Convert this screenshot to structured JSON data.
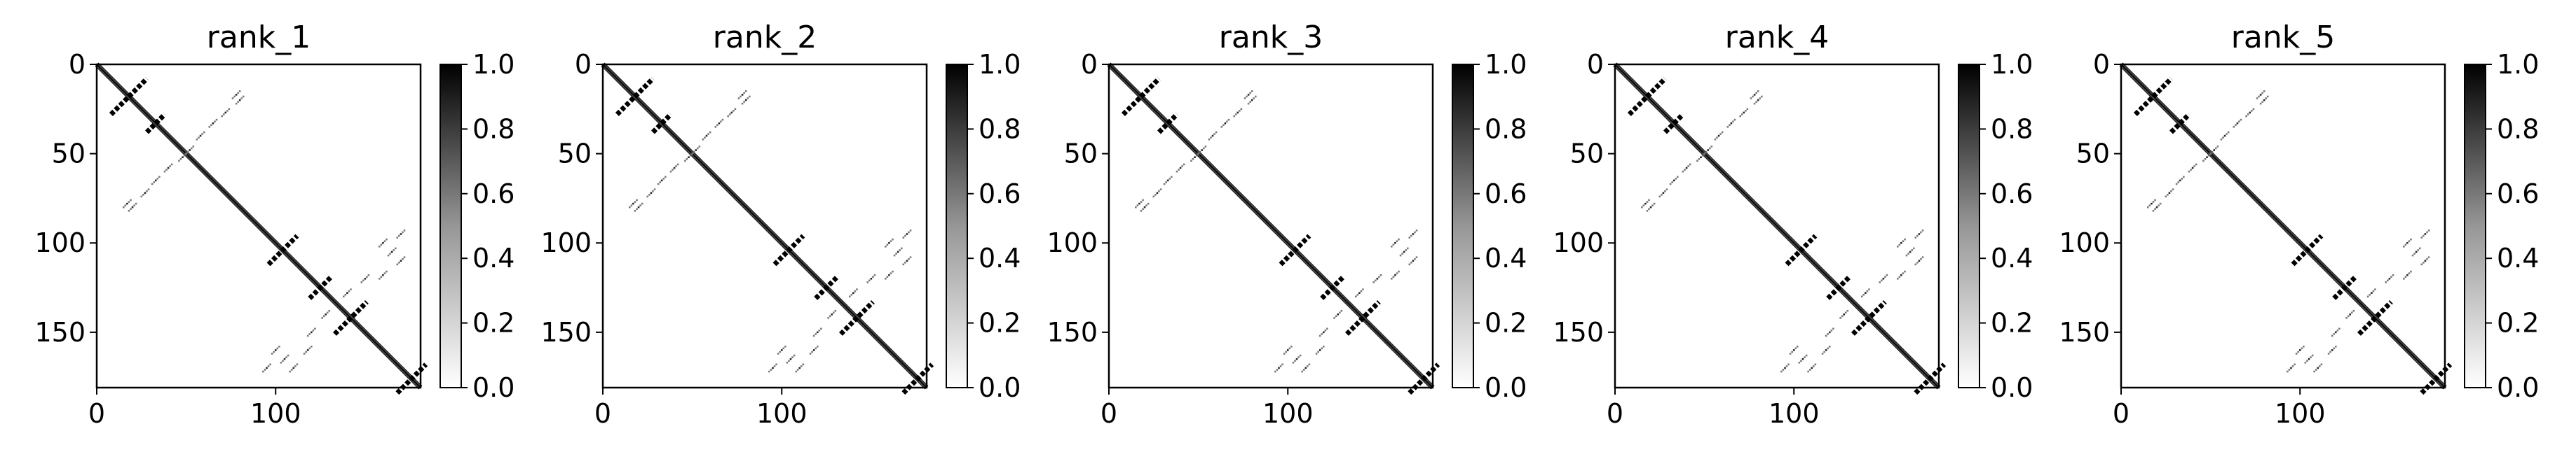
{
  "figure": {
    "panel_count": 5
  },
  "chart_data": [
    {
      "type": "heatmap",
      "title": "rank_1",
      "xlim": [
        0,
        181
      ],
      "ylim": [
        181,
        0
      ],
      "xticks": [
        0,
        100
      ],
      "yticks": [
        0,
        50,
        100,
        150
      ],
      "colorbar": {
        "min": 0.0,
        "max": 1.0,
        "ticks": [
          "0.0",
          "0.2",
          "0.4",
          "0.6",
          "0.8",
          "1.0"
        ],
        "colormap": "Greys"
      },
      "matrix_size": 181,
      "grid": false,
      "structure": {
        "main_diagonal": true,
        "anti_diagonal_blocks": [
          {
            "center": [
              18,
              18
            ],
            "halfwidth": 10
          },
          {
            "center": [
              33,
              33
            ],
            "halfwidth": 5
          },
          {
            "center": [
              104,
              104
            ],
            "halfwidth": 8
          },
          {
            "center": [
              125,
              125
            ],
            "halfwidth": 6
          },
          {
            "center": [
              142,
              142
            ],
            "halfwidth": 9
          },
          {
            "center": [
              176,
              176
            ],
            "halfwidth": 8
          }
        ],
        "off_diagonal_dots": [
          [
            78,
            17
          ],
          [
            80,
            20
          ],
          [
            72,
            27
          ],
          [
            65,
            33
          ],
          [
            58,
            40
          ],
          [
            52,
            48
          ],
          [
            17,
            78
          ],
          [
            20,
            80
          ],
          [
            27,
            72
          ],
          [
            33,
            65
          ],
          [
            40,
            58
          ],
          [
            48,
            52
          ],
          [
            160,
            100
          ],
          [
            165,
            105
          ],
          [
            170,
            110
          ],
          [
            150,
            120
          ],
          [
            140,
            128
          ],
          [
            100,
            160
          ],
          [
            105,
            165
          ],
          [
            110,
            170
          ],
          [
            120,
            150
          ],
          [
            128,
            140
          ],
          [
            170,
            95
          ],
          [
            95,
            170
          ],
          [
            118,
            160
          ],
          [
            160,
            118
          ]
        ]
      }
    },
    {
      "type": "heatmap",
      "title": "rank_2",
      "xlim": [
        0,
        181
      ],
      "ylim": [
        181,
        0
      ],
      "xticks": [
        0,
        100
      ],
      "yticks": [
        0,
        50,
        100,
        150
      ],
      "colorbar": {
        "min": 0.0,
        "max": 1.0,
        "ticks": [
          "0.0",
          "0.2",
          "0.4",
          "0.6",
          "0.8",
          "1.0"
        ],
        "colormap": "Greys"
      },
      "matrix_size": 181,
      "grid": false,
      "structure": {
        "main_diagonal": true,
        "anti_diagonal_blocks": [
          {
            "center": [
              18,
              18
            ],
            "halfwidth": 10
          },
          {
            "center": [
              33,
              33
            ],
            "halfwidth": 5
          },
          {
            "center": [
              104,
              104
            ],
            "halfwidth": 8
          },
          {
            "center": [
              125,
              125
            ],
            "halfwidth": 6
          },
          {
            "center": [
              142,
              142
            ],
            "halfwidth": 9
          },
          {
            "center": [
              176,
              176
            ],
            "halfwidth": 8
          }
        ],
        "off_diagonal_dots": [
          [
            78,
            17
          ],
          [
            80,
            20
          ],
          [
            72,
            27
          ],
          [
            65,
            33
          ],
          [
            58,
            40
          ],
          [
            52,
            48
          ],
          [
            17,
            78
          ],
          [
            20,
            80
          ],
          [
            27,
            72
          ],
          [
            33,
            65
          ],
          [
            40,
            58
          ],
          [
            48,
            52
          ],
          [
            160,
            100
          ],
          [
            165,
            105
          ],
          [
            170,
            110
          ],
          [
            150,
            120
          ],
          [
            140,
            128
          ],
          [
            100,
            160
          ],
          [
            105,
            165
          ],
          [
            110,
            170
          ],
          [
            120,
            150
          ],
          [
            128,
            140
          ],
          [
            170,
            95
          ],
          [
            95,
            170
          ],
          [
            118,
            160
          ],
          [
            160,
            118
          ]
        ]
      }
    },
    {
      "type": "heatmap",
      "title": "rank_3",
      "xlim": [
        0,
        181
      ],
      "ylim": [
        181,
        0
      ],
      "xticks": [
        0,
        100
      ],
      "yticks": [
        0,
        50,
        100,
        150
      ],
      "colorbar": {
        "min": 0.0,
        "max": 1.0,
        "ticks": [
          "0.0",
          "0.2",
          "0.4",
          "0.6",
          "0.8",
          "1.0"
        ],
        "colormap": "Greys"
      },
      "matrix_size": 181,
      "grid": false,
      "structure": {
        "main_diagonal": true,
        "anti_diagonal_blocks": [
          {
            "center": [
              18,
              18
            ],
            "halfwidth": 10
          },
          {
            "center": [
              33,
              33
            ],
            "halfwidth": 5
          },
          {
            "center": [
              104,
              104
            ],
            "halfwidth": 8
          },
          {
            "center": [
              125,
              125
            ],
            "halfwidth": 6
          },
          {
            "center": [
              142,
              142
            ],
            "halfwidth": 9
          },
          {
            "center": [
              176,
              176
            ],
            "halfwidth": 8
          }
        ],
        "off_diagonal_dots": [
          [
            78,
            17
          ],
          [
            80,
            20
          ],
          [
            72,
            27
          ],
          [
            65,
            33
          ],
          [
            58,
            40
          ],
          [
            52,
            48
          ],
          [
            17,
            78
          ],
          [
            20,
            80
          ],
          [
            27,
            72
          ],
          [
            33,
            65
          ],
          [
            40,
            58
          ],
          [
            48,
            52
          ],
          [
            160,
            100
          ],
          [
            165,
            105
          ],
          [
            170,
            110
          ],
          [
            150,
            120
          ],
          [
            140,
            128
          ],
          [
            100,
            160
          ],
          [
            105,
            165
          ],
          [
            110,
            170
          ],
          [
            120,
            150
          ],
          [
            128,
            140
          ],
          [
            170,
            95
          ],
          [
            95,
            170
          ],
          [
            118,
            160
          ],
          [
            160,
            118
          ]
        ]
      }
    },
    {
      "type": "heatmap",
      "title": "rank_4",
      "xlim": [
        0,
        181
      ],
      "ylim": [
        181,
        0
      ],
      "xticks": [
        0,
        100
      ],
      "yticks": [
        0,
        50,
        100,
        150
      ],
      "colorbar": {
        "min": 0.0,
        "max": 1.0,
        "ticks": [
          "0.0",
          "0.2",
          "0.4",
          "0.6",
          "0.8",
          "1.0"
        ],
        "colormap": "Greys"
      },
      "matrix_size": 181,
      "grid": false,
      "structure": {
        "main_diagonal": true,
        "anti_diagonal_blocks": [
          {
            "center": [
              18,
              18
            ],
            "halfwidth": 10
          },
          {
            "center": [
              33,
              33
            ],
            "halfwidth": 5
          },
          {
            "center": [
              104,
              104
            ],
            "halfwidth": 8
          },
          {
            "center": [
              125,
              125
            ],
            "halfwidth": 6
          },
          {
            "center": [
              142,
              142
            ],
            "halfwidth": 9
          },
          {
            "center": [
              176,
              176
            ],
            "halfwidth": 8
          }
        ],
        "off_diagonal_dots": [
          [
            78,
            17
          ],
          [
            80,
            20
          ],
          [
            72,
            27
          ],
          [
            65,
            33
          ],
          [
            58,
            40
          ],
          [
            52,
            48
          ],
          [
            17,
            78
          ],
          [
            20,
            80
          ],
          [
            27,
            72
          ],
          [
            33,
            65
          ],
          [
            40,
            58
          ],
          [
            48,
            52
          ],
          [
            160,
            100
          ],
          [
            165,
            105
          ],
          [
            170,
            110
          ],
          [
            150,
            120
          ],
          [
            140,
            128
          ],
          [
            100,
            160
          ],
          [
            105,
            165
          ],
          [
            110,
            170
          ],
          [
            120,
            150
          ],
          [
            128,
            140
          ],
          [
            170,
            95
          ],
          [
            95,
            170
          ],
          [
            118,
            160
          ],
          [
            160,
            118
          ]
        ]
      }
    },
    {
      "type": "heatmap",
      "title": "rank_5",
      "xlim": [
        0,
        181
      ],
      "ylim": [
        181,
        0
      ],
      "xticks": [
        0,
        100
      ],
      "yticks": [
        0,
        50,
        100,
        150
      ],
      "colorbar": {
        "min": 0.0,
        "max": 1.0,
        "ticks": [
          "0.0",
          "0.2",
          "0.4",
          "0.6",
          "0.8",
          "1.0"
        ],
        "colormap": "Greys"
      },
      "matrix_size": 181,
      "grid": false,
      "structure": {
        "main_diagonal": true,
        "anti_diagonal_blocks": [
          {
            "center": [
              18,
              18
            ],
            "halfwidth": 10
          },
          {
            "center": [
              33,
              33
            ],
            "halfwidth": 5
          },
          {
            "center": [
              104,
              104
            ],
            "halfwidth": 8
          },
          {
            "center": [
              125,
              125
            ],
            "halfwidth": 6
          },
          {
            "center": [
              142,
              142
            ],
            "halfwidth": 9
          },
          {
            "center": [
              176,
              176
            ],
            "halfwidth": 8
          }
        ],
        "off_diagonal_dots": [
          [
            78,
            17
          ],
          [
            80,
            20
          ],
          [
            72,
            27
          ],
          [
            65,
            33
          ],
          [
            58,
            40
          ],
          [
            52,
            48
          ],
          [
            17,
            78
          ],
          [
            20,
            80
          ],
          [
            27,
            72
          ],
          [
            33,
            65
          ],
          [
            40,
            58
          ],
          [
            48,
            52
          ],
          [
            160,
            100
          ],
          [
            165,
            105
          ],
          [
            170,
            110
          ],
          [
            150,
            120
          ],
          [
            140,
            128
          ],
          [
            100,
            160
          ],
          [
            105,
            165
          ],
          [
            110,
            170
          ],
          [
            120,
            150
          ],
          [
            128,
            140
          ],
          [
            170,
            95
          ],
          [
            95,
            170
          ],
          [
            118,
            160
          ],
          [
            160,
            118
          ]
        ]
      }
    }
  ]
}
